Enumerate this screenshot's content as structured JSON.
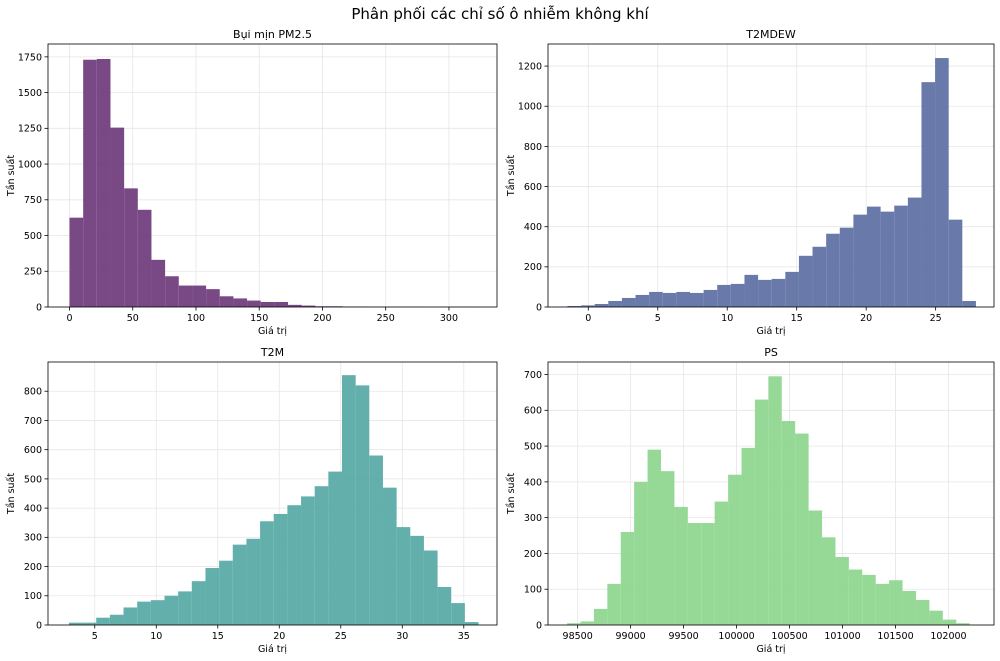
{
  "figure": {
    "suptitle": "Phân phối các chỉ số ô nhiễm không khí"
  },
  "chart_data": [
    {
      "type": "bar",
      "subtype": "histogram",
      "title": "Bụi mịn PM2.5",
      "xlabel": "Giá trị",
      "ylabel": "Tần suất",
      "color": "#6e3a7c",
      "xlim": [
        -17,
        338
      ],
      "ylim": [
        0,
        1840
      ],
      "xticks": [
        0,
        50,
        100,
        150,
        200,
        250,
        300
      ],
      "yticks": [
        0,
        250,
        500,
        750,
        1000,
        1250,
        1500,
        1750
      ],
      "bin_edges": [
        0,
        10.8,
        21.6,
        32.4,
        43.2,
        54,
        64.8,
        75.6,
        86.4,
        97.2,
        108,
        118.8,
        129.6,
        140.4,
        151.2,
        162,
        172.8,
        183.6,
        194.4,
        205.2,
        216,
        226.8,
        237.6,
        248.4,
        259.2,
        270,
        280.8,
        291.6,
        302.4,
        313.2,
        324
      ],
      "counts": [
        625,
        1730,
        1735,
        1255,
        830,
        680,
        330,
        215,
        150,
        150,
        125,
        75,
        60,
        45,
        35,
        35,
        15,
        10,
        5,
        5,
        2,
        2,
        1,
        1,
        1,
        1,
        0,
        1,
        1,
        1
      ],
      "grid": true
    },
    {
      "type": "bar",
      "subtype": "histogram",
      "title": "T2MDEW",
      "xlabel": "Giá trị",
      "ylabel": "Tần suất",
      "color": "#5c6fa3",
      "xlim": [
        -2.9,
        29.2
      ],
      "ylim": [
        0,
        1310
      ],
      "xticks": [
        0,
        5,
        10,
        15,
        20,
        25
      ],
      "yticks": [
        0,
        200,
        400,
        600,
        800,
        1000,
        1200
      ],
      "bin_edges": [
        -1.5,
        -0.52,
        0.46,
        1.44,
        2.42,
        3.4,
        4.38,
        5.36,
        6.34,
        7.32,
        8.3,
        9.28,
        10.26,
        11.24,
        12.22,
        13.2,
        14.18,
        15.16,
        16.14,
        17.12,
        18.1,
        19.08,
        20.06,
        21.04,
        22.02,
        23.0,
        23.98,
        24.96,
        25.94,
        26.92,
        27.9
      ],
      "counts": [
        5,
        8,
        15,
        30,
        45,
        60,
        75,
        70,
        75,
        70,
        85,
        110,
        115,
        160,
        135,
        140,
        175,
        255,
        300,
        365,
        395,
        460,
        500,
        475,
        505,
        545,
        1120,
        1240,
        435,
        30
      ],
      "grid": true
    },
    {
      "type": "bar",
      "subtype": "histogram",
      "title": "T2M",
      "xlabel": "Giá trị",
      "ylabel": "Tần suất",
      "color": "#56a8a5",
      "xlim": [
        1.2,
        37.7
      ],
      "ylim": [
        0,
        900
      ],
      "xticks": [
        5,
        10,
        15,
        20,
        25,
        30,
        35
      ],
      "yticks": [
        0,
        100,
        200,
        300,
        400,
        500,
        600,
        700,
        800
      ],
      "bin_edges": [
        2.9,
        4.01,
        5.12,
        6.23,
        7.34,
        8.45,
        9.56,
        10.67,
        11.78,
        12.89,
        14.0,
        15.11,
        16.22,
        17.33,
        18.44,
        19.55,
        20.66,
        21.77,
        22.88,
        23.99,
        25.1,
        26.21,
        27.32,
        28.43,
        29.54,
        30.65,
        31.76,
        32.87,
        33.98,
        35.09,
        36.2
      ],
      "counts": [
        8,
        8,
        25,
        35,
        60,
        80,
        85,
        100,
        115,
        150,
        195,
        220,
        275,
        295,
        355,
        380,
        410,
        440,
        475,
        525,
        855,
        820,
        580,
        470,
        335,
        305,
        255,
        130,
        75,
        10
      ],
      "grid": true
    },
    {
      "type": "bar",
      "subtype": "histogram",
      "title": "PS",
      "xlabel": "Giá trị",
      "ylabel": "Tần suất",
      "color": "#8dd68d",
      "xlim": [
        98220,
        102430
      ],
      "ylim": [
        0,
        735
      ],
      "xticks": [
        98500,
        99000,
        99500,
        100000,
        100500,
        101000,
        101500,
        102000
      ],
      "yticks": [
        0,
        100,
        200,
        300,
        400,
        500,
        600,
        700
      ],
      "bin_edges": [
        98400,
        98526.7,
        98653.3,
        98780,
        98906.7,
        99033.3,
        99160,
        99286.7,
        99413.3,
        99540,
        99666.7,
        99793.3,
        99920,
        100046.7,
        100173.3,
        100300,
        100426.7,
        100553.3,
        100680,
        100806.7,
        100933.3,
        101060,
        101186.7,
        101313.3,
        101440,
        101566.7,
        101693.3,
        101820,
        101946.7,
        102073.3,
        102200
      ],
      "counts": [
        5,
        10,
        45,
        115,
        260,
        400,
        490,
        430,
        330,
        285,
        285,
        345,
        420,
        495,
        630,
        695,
        570,
        535,
        320,
        245,
        190,
        155,
        140,
        115,
        125,
        95,
        70,
        40,
        15,
        5
      ],
      "grid": true
    }
  ]
}
